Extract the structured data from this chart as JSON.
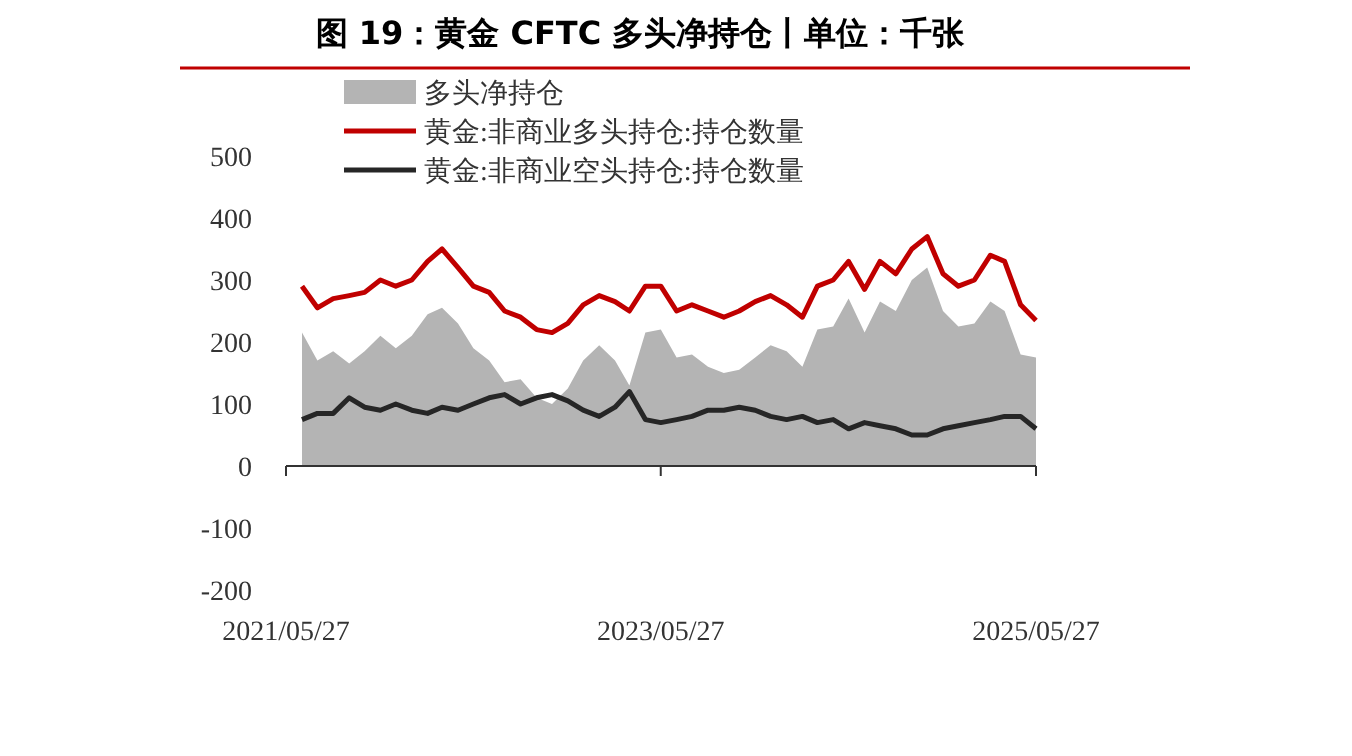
{
  "chart_data": {
    "type": "line",
    "title": "图 19：黄金 CFTC 多头净持仓丨单位：千张",
    "x": [
      "2021-06-27",
      "2021-07-27",
      "2021-08-27",
      "2021-09-27",
      "2021-10-27",
      "2021-11-27",
      "2021-12-27",
      "2022-01-27",
      "2022-02-27",
      "2022-03-27",
      "2022-04-27",
      "2022-05-27",
      "2022-06-27",
      "2022-07-27",
      "2022-08-27",
      "2022-09-27",
      "2022-10-27",
      "2022-11-27",
      "2022-12-27",
      "2023-01-27",
      "2023-02-27",
      "2023-03-27",
      "2023-04-27",
      "2023-05-27",
      "2023-06-27",
      "2023-07-27",
      "2023-08-27",
      "2023-09-27",
      "2023-10-27",
      "2023-11-27",
      "2023-12-27",
      "2024-01-27",
      "2024-02-27",
      "2024-03-27",
      "2024-04-27",
      "2024-05-27",
      "2024-06-27",
      "2024-07-27",
      "2024-08-27",
      "2024-09-27",
      "2024-10-27",
      "2024-11-27",
      "2024-12-27",
      "2025-01-27",
      "2025-02-27",
      "2025-03-27",
      "2025-04-27",
      "2025-05-27"
    ],
    "series": [
      {
        "name": "多头净持仓",
        "type": "area",
        "color": "#b4b4b4",
        "values": [
          215,
          170,
          185,
          165,
          185,
          210,
          190,
          210,
          245,
          255,
          230,
          190,
          170,
          135,
          140,
          110,
          100,
          125,
          170,
          195,
          170,
          130,
          215,
          220,
          175,
          180,
          160,
          150,
          155,
          175,
          195,
          185,
          160,
          220,
          225,
          270,
          215,
          265,
          250,
          300,
          320,
          250,
          225,
          230,
          265,
          250,
          180,
          175
        ]
      },
      {
        "name": "黄金:非商业多头持仓:持仓数量",
        "color": "#c00000",
        "values": [
          290,
          255,
          270,
          275,
          280,
          300,
          290,
          300,
          330,
          350,
          320,
          290,
          280,
          250,
          240,
          220,
          215,
          230,
          260,
          275,
          265,
          250,
          290,
          290,
          250,
          260,
          250,
          240,
          250,
          265,
          275,
          260,
          240,
          290,
          300,
          330,
          285,
          330,
          310,
          350,
          370,
          310,
          290,
          300,
          340,
          330,
          260,
          235
        ]
      },
      {
        "name": "黄金:非商业空头持仓:持仓数量",
        "color": "#262626",
        "values": [
          75,
          85,
          85,
          110,
          95,
          90,
          100,
          90,
          85,
          95,
          90,
          100,
          110,
          115,
          100,
          110,
          115,
          105,
          90,
          80,
          95,
          120,
          75,
          70,
          75,
          80,
          90,
          90,
          95,
          90,
          80,
          75,
          80,
          70,
          75,
          60,
          70,
          65,
          60,
          50,
          50,
          60,
          65,
          70,
          75,
          80,
          80,
          60
        ]
      }
    ],
    "xlim": [
      "2021-05-27",
      "2025-05-27"
    ],
    "xticks": [
      {
        "value": "2021-05-27",
        "label": "2021/05/27"
      },
      {
        "value": "2023-05-27",
        "label": "2023/05/27"
      },
      {
        "value": "2025-05-27",
        "label": "2025/05/27"
      }
    ],
    "ylim": [
      -200,
      500
    ],
    "yticks": [
      -200,
      -100,
      0,
      100,
      200,
      300,
      400,
      500
    ],
    "legend": "top left"
  }
}
